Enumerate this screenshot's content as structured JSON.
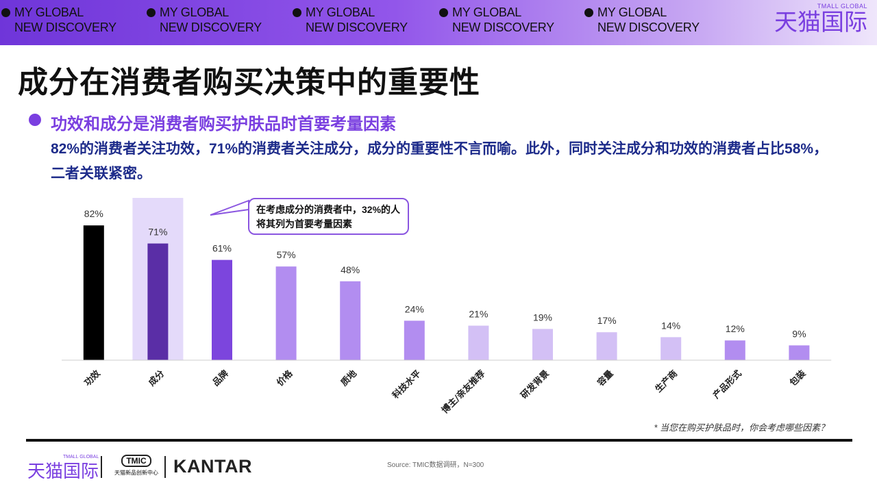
{
  "banner": {
    "tags": [
      {
        "line1": "MY GLOBAL",
        "line2": "NEW DISCOVERY"
      },
      {
        "line1": "MY GLOBAL",
        "line2": "NEW DISCOVERY"
      },
      {
        "line1": "MY GLOBAL",
        "line2": "NEW DISCOVERY"
      },
      {
        "line1": "MY GLOBAL",
        "line2": "NEW DISCOVERY"
      },
      {
        "line1": "MY GLOBAL",
        "line2": "NEW DISCOVERY"
      }
    ],
    "brand_small": "TMALL GLOBAL",
    "brand_big": "天猫国际"
  },
  "title": "成分在消费者购买决策中的重要性",
  "subtitle": "功效和成分是消费者购买护肤品时首要考量因素",
  "description": "82%的消费者关注功效，71%的消费者关注成分，成分的重要性不言而喻。此外，同时关注成分和功效的消费者占比58%，二者关联紧密。",
  "callout": "在考虑成分的消费者中，32%的人将其列为首要考量因素",
  "footnote": "* 当您在购买护肤品时，你会考虑哪些因素？",
  "footer": {
    "tmall_small": "TMALL GLOBAL",
    "tmall_big": "天猫国际",
    "tmic_logo": "TMIC",
    "tmic_caption": "天猫新品创新中心",
    "kantar": "KANTAR",
    "source": "Source: TMIC数据调研，N=300"
  },
  "chart_data": {
    "type": "bar",
    "categories": [
      "功效",
      "成分",
      "品牌",
      "价格",
      "质地",
      "科技水平",
      "博主/亲友推荐",
      "研发背景",
      "容量",
      "生产商",
      "产品形式",
      "包装"
    ],
    "values": [
      82,
      71,
      61,
      57,
      48,
      24,
      21,
      19,
      17,
      14,
      12,
      9
    ],
    "value_suffix": "%",
    "colors": [
      "#000000",
      "#5a2ea6",
      "#7c45dd",
      "#b28df0",
      "#b28df0",
      "#b28df0",
      "#d3c0f5",
      "#d3c0f5",
      "#d3c0f5",
      "#d3c0f5",
      "#b28df0",
      "#b28df0"
    ],
    "highlight_index": 1,
    "highlight_color": "#e4dafa",
    "ylim": [
      0,
      100
    ]
  }
}
